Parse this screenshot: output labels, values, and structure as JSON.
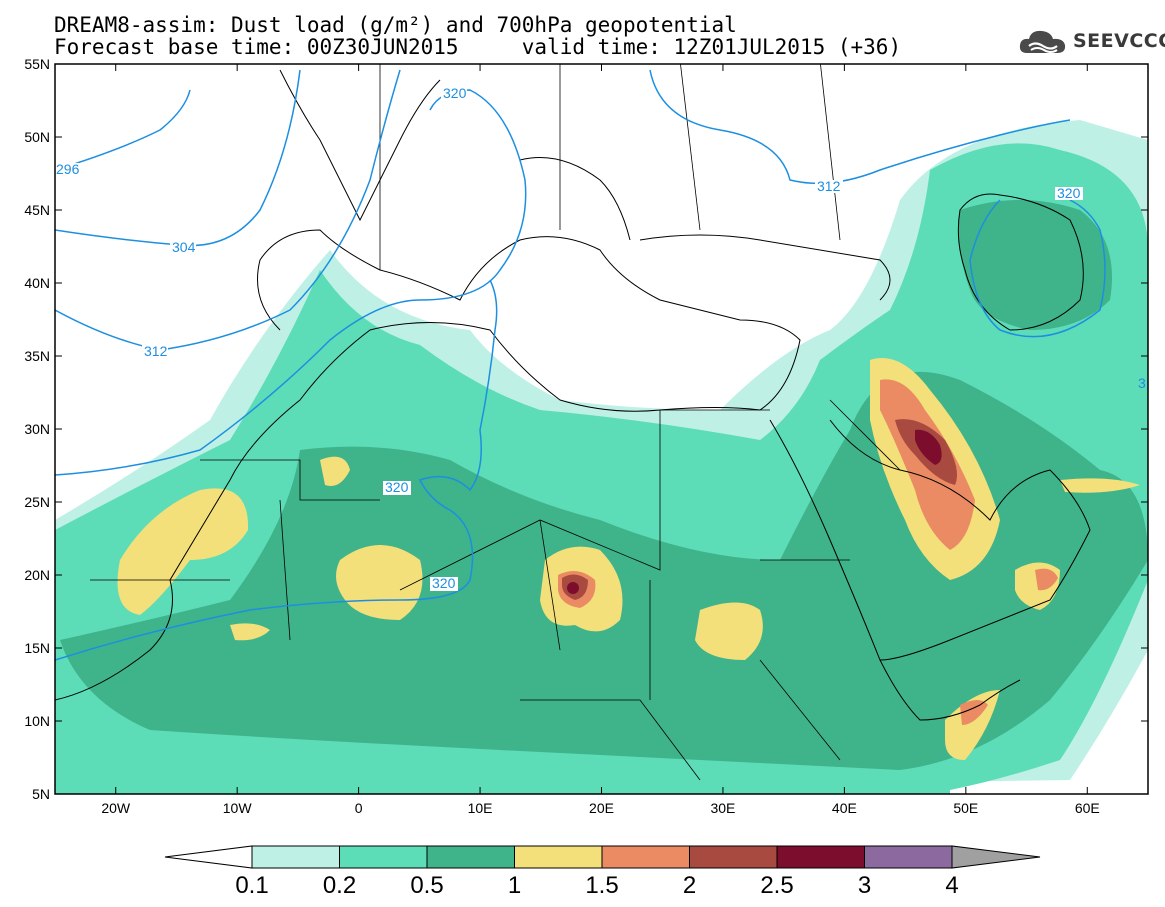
{
  "title": {
    "line1": "DREAM8-assim: Dust load (g/m²) and 700hPa geopotential",
    "line2": "Forecast base time: 00Z30JUN2015     valid time: 12Z01JUL2015 (+36)"
  },
  "logo": {
    "text": "SEEVCCC",
    "icon": "cloud-icon"
  },
  "map": {
    "lon_range": [
      -25,
      65
    ],
    "lat_range": [
      5,
      55
    ],
    "lat_labels": [
      "55N",
      "50N",
      "45N",
      "40N",
      "35N",
      "30N",
      "25N",
      "20N",
      "15N",
      "10N",
      "5N"
    ],
    "lon_labels": [
      "20W",
      "10W",
      "0",
      "10E",
      "20E",
      "30E",
      "40E",
      "50E",
      "60E"
    ]
  },
  "contour_labels": [
    "296",
    "304",
    "312",
    "320",
    "320",
    "320",
    "312",
    "320",
    "3"
  ],
  "colorbar": {
    "labels": [
      "0.1",
      "0.2",
      "0.5",
      "1",
      "1.5",
      "2",
      "2.5",
      "3",
      "4"
    ],
    "colors": [
      "#bff0e6",
      "#5ddcb8",
      "#3fb38a",
      "#f3e07a",
      "#ea8b63",
      "#a84a40",
      "#7d0d2c",
      "#8c6aa0",
      "#a0a0a0"
    ]
  },
  "colors": {
    "geopotential_line": "#1d8fe0",
    "land_fill": "#ffffff",
    "border": "#000000"
  }
}
